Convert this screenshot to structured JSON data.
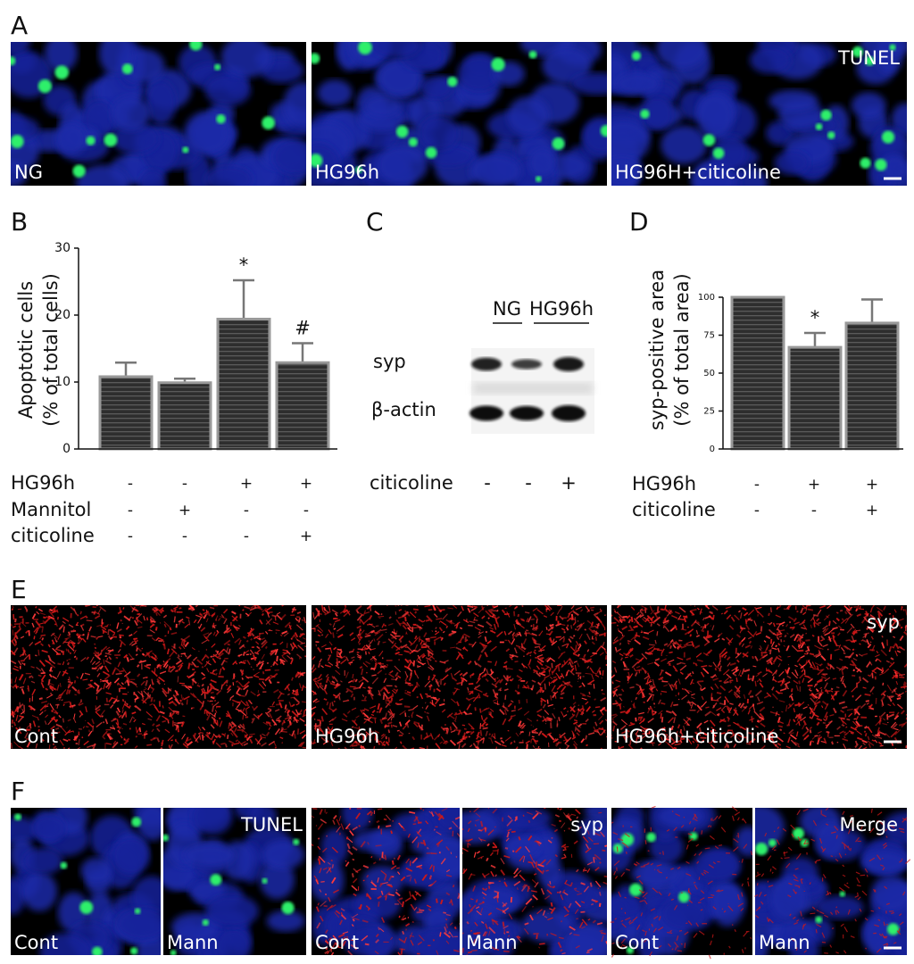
{
  "panel_labels": [
    "A",
    "B",
    "C",
    "D",
    "E",
    "F"
  ],
  "panel_a": {
    "captions": [
      "NG",
      "HG96h",
      "HG96H+citicoline"
    ],
    "stain": "TUNEL"
  },
  "panel_e": {
    "captions": [
      "Cont",
      "HG96h",
      "HG96h+citicoline"
    ],
    "stain": "syp"
  },
  "panel_f": {
    "captions": [
      "Cont",
      "Mann",
      "Cont",
      "Mann",
      "Cont",
      "Mann"
    ],
    "stains": [
      "TUNEL",
      "syp",
      "Merge"
    ]
  },
  "blot": {
    "groups": [
      "NG",
      "HG96h"
    ],
    "rows": [
      "syp",
      "β-actin"
    ],
    "treatment": "citicoline",
    "signs": [
      "-",
      "-",
      "+"
    ]
  },
  "chart_data": [
    {
      "type": "bar",
      "ylabel": [
        "Apoptotic cells",
        "(% of total cells)"
      ],
      "values": [
        10.8,
        9.9,
        19.4,
        12.9
      ],
      "errors": [
        2.1,
        0.6,
        5.8,
        2.9
      ],
      "value_annotations": [
        null,
        null,
        "*",
        "#"
      ],
      "ylim": [
        0,
        30
      ],
      "yticks": [
        0,
        10,
        20,
        30
      ],
      "color": "#333333",
      "conditions": [
        {
          "name": "HG96h",
          "signs": [
            "-",
            "-",
            "+",
            "+"
          ]
        },
        {
          "name": "Mannitol",
          "signs": [
            "-",
            "+",
            "-",
            "-"
          ]
        },
        {
          "name": "citicoline",
          "signs": [
            "-",
            "-",
            "-",
            "+"
          ]
        }
      ]
    },
    {
      "type": "bar",
      "ylabel": [
        "syp-positive area",
        "(% of total area)"
      ],
      "values": [
        100,
        67,
        83
      ],
      "errors": [
        0,
        9.5,
        15.5
      ],
      "value_annotations": [
        null,
        "*",
        null
      ],
      "ylim": [
        0,
        100
      ],
      "yticks": [
        0,
        25,
        50,
        75,
        100
      ],
      "color": "#333333",
      "conditions": [
        {
          "name": "HG96h",
          "signs": [
            "-",
            "+",
            "+"
          ]
        },
        {
          "name": "citicoline",
          "signs": [
            "-",
            "-",
            "+"
          ]
        }
      ]
    }
  ]
}
